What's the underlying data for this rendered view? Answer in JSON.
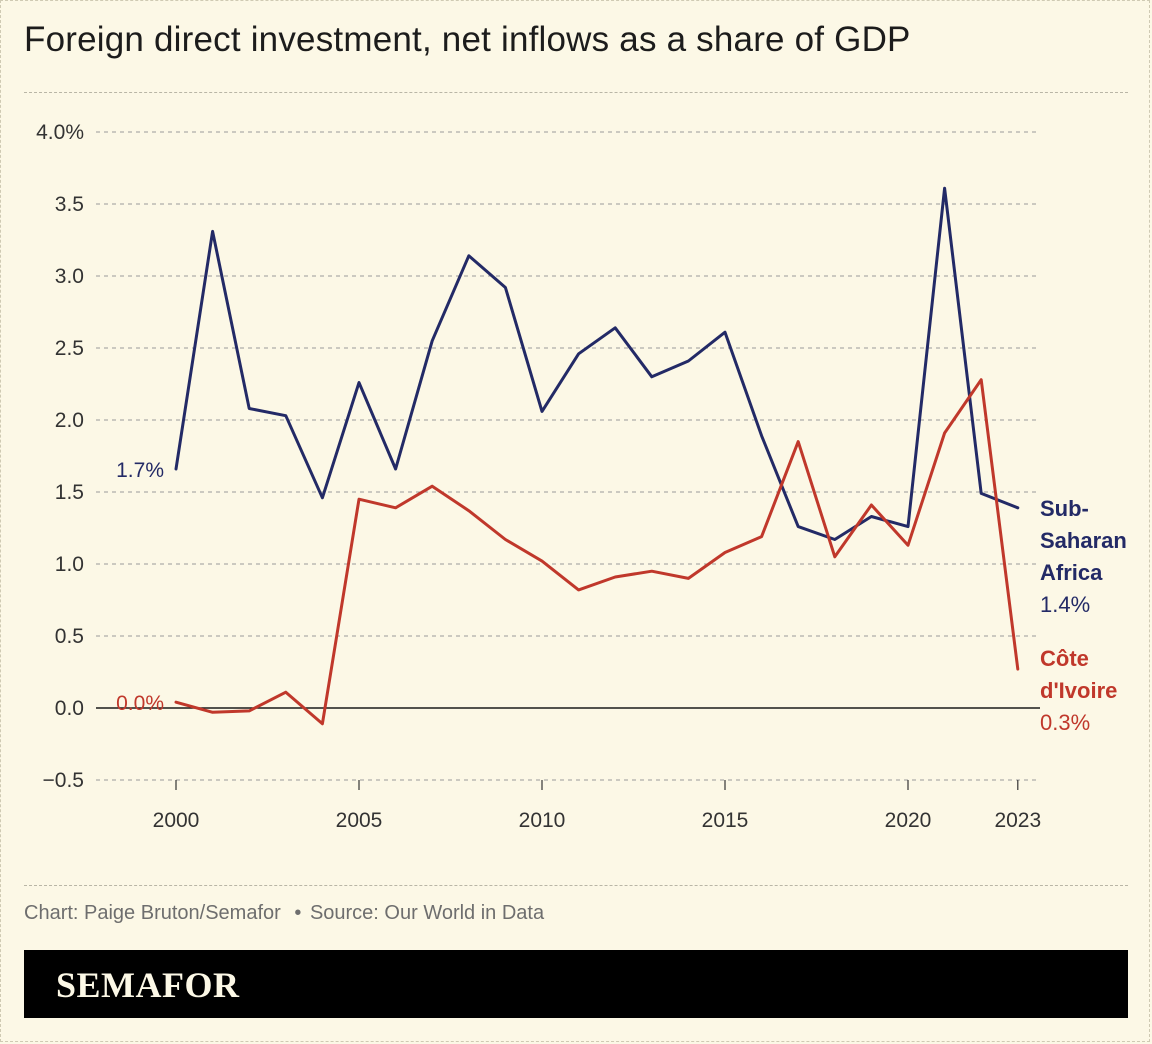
{
  "title": "Foreign direct investment, net inflows as a share of GDP",
  "source": {
    "credit": "Chart: Paige Bruton/Semafor",
    "separator": "•",
    "source_text": "Source: Our World in Data"
  },
  "brand": {
    "logo_text": "SEMAFOR"
  },
  "colors": {
    "background": "#fcf8e6",
    "ssa": "#232a66",
    "civ": "#c0382b",
    "grid": "#9a9a9a",
    "zero_line": "#1a1a1a",
    "text": "#1c1c1c",
    "muted": "#6e6e6e"
  },
  "chart_data": {
    "type": "line",
    "title": "Foreign direct investment, net inflows as a share of GDP",
    "xlabel": "",
    "ylabel": "",
    "xlim": [
      1998,
      2023.5
    ],
    "ylim": [
      -0.5,
      4.0
    ],
    "y_ticks": [
      -0.5,
      0.0,
      0.5,
      1.0,
      1.5,
      2.0,
      2.5,
      3.0,
      3.5,
      4.0
    ],
    "y_tick_labels": [
      "−0.5",
      "0.0",
      "0.5",
      "1.0",
      "1.5",
      "2.0",
      "2.5",
      "3.0",
      "3.5",
      "4.0%"
    ],
    "x_ticks": [
      2000,
      2005,
      2010,
      2015,
      2020,
      2023
    ],
    "x_tick_labels": [
      "2000",
      "2005",
      "2010",
      "2015",
      "2020",
      "2023"
    ],
    "grid": true,
    "x": [
      2000,
      2001,
      2002,
      2003,
      2004,
      2005,
      2006,
      2007,
      2008,
      2009,
      2010,
      2011,
      2012,
      2013,
      2014,
      2015,
      2016,
      2017,
      2018,
      2019,
      2020,
      2021,
      2022,
      2023
    ],
    "series": [
      {
        "name": "Sub-Saharan Africa",
        "label_lines": [
          "Sub-",
          "Saharan",
          "Africa"
        ],
        "start_label": "1.7%",
        "end_label": "1.4%",
        "color_key": "ssa",
        "values": [
          1.66,
          3.31,
          2.08,
          2.03,
          1.46,
          2.26,
          1.66,
          2.55,
          3.14,
          2.92,
          2.06,
          2.46,
          2.64,
          2.3,
          2.41,
          2.61,
          1.89,
          1.26,
          1.17,
          1.33,
          1.26,
          3.61,
          1.49,
          1.39
        ]
      },
      {
        "name": "Côte d'Ivoire",
        "label_lines": [
          "Côte",
          "d'Ivoire"
        ],
        "start_label": "0.0%",
        "end_label": "0.3%",
        "color_key": "civ",
        "values": [
          0.04,
          -0.03,
          -0.02,
          0.11,
          -0.11,
          1.45,
          1.39,
          1.54,
          1.37,
          1.17,
          1.02,
          0.82,
          0.91,
          0.95,
          0.9,
          1.08,
          1.19,
          1.85,
          1.05,
          1.41,
          1.13,
          1.91,
          2.28,
          0.27
        ]
      }
    ]
  }
}
